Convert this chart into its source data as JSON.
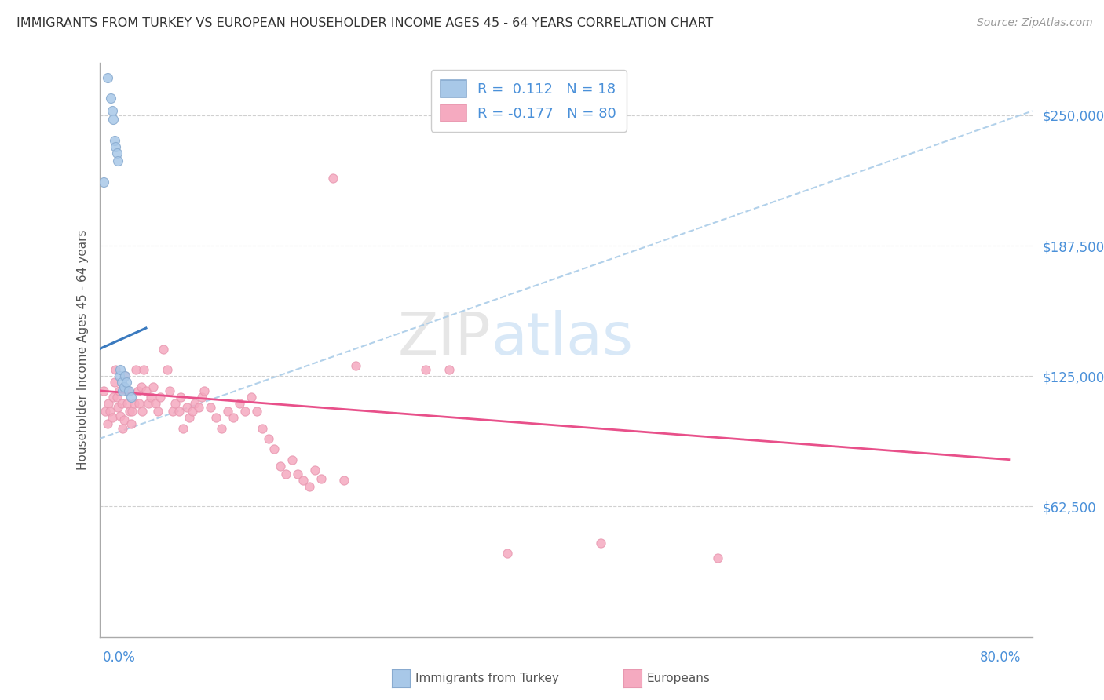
{
  "title": "IMMIGRANTS FROM TURKEY VS EUROPEAN HOUSEHOLDER INCOME AGES 45 - 64 YEARS CORRELATION CHART",
  "source": "Source: ZipAtlas.com",
  "ylabel": "Householder Income Ages 45 - 64 years",
  "y_ticks": [
    62500,
    125000,
    187500,
    250000
  ],
  "y_tick_labels": [
    "$62,500",
    "$125,000",
    "$187,500",
    "$250,000"
  ],
  "x_min": 0.0,
  "x_max": 0.8,
  "y_min": 0,
  "y_max": 275000,
  "color_turkey": "#a8c8e8",
  "color_europe": "#f5aac0",
  "trendline_turkey_dashed": "#aacce8",
  "trendline_turkey_solid": "#3a7abf",
  "trendline_europe_solid": "#e8508a",
  "turkey_points": [
    [
      0.004,
      218000
    ],
    [
      0.007,
      268000
    ],
    [
      0.01,
      258000
    ],
    [
      0.011,
      252000
    ],
    [
      0.012,
      248000
    ],
    [
      0.013,
      238000
    ],
    [
      0.014,
      235000
    ],
    [
      0.015,
      232000
    ],
    [
      0.016,
      228000
    ],
    [
      0.017,
      125000
    ],
    [
      0.018,
      128000
    ],
    [
      0.019,
      122000
    ],
    [
      0.02,
      118000
    ],
    [
      0.021,
      120000
    ],
    [
      0.022,
      125000
    ],
    [
      0.023,
      122000
    ],
    [
      0.025,
      118000
    ],
    [
      0.027,
      115000
    ]
  ],
  "europe_points": [
    [
      0.004,
      118000
    ],
    [
      0.005,
      108000
    ],
    [
      0.007,
      102000
    ],
    [
      0.008,
      112000
    ],
    [
      0.009,
      108000
    ],
    [
      0.011,
      105000
    ],
    [
      0.012,
      115000
    ],
    [
      0.013,
      122000
    ],
    [
      0.014,
      128000
    ],
    [
      0.015,
      115000
    ],
    [
      0.016,
      110000
    ],
    [
      0.017,
      118000
    ],
    [
      0.018,
      106000
    ],
    [
      0.019,
      112000
    ],
    [
      0.02,
      100000
    ],
    [
      0.021,
      104000
    ],
    [
      0.022,
      125000
    ],
    [
      0.023,
      118000
    ],
    [
      0.024,
      112000
    ],
    [
      0.025,
      118000
    ],
    [
      0.026,
      108000
    ],
    [
      0.027,
      102000
    ],
    [
      0.028,
      108000
    ],
    [
      0.03,
      112000
    ],
    [
      0.031,
      128000
    ],
    [
      0.033,
      118000
    ],
    [
      0.034,
      112000
    ],
    [
      0.036,
      120000
    ],
    [
      0.037,
      108000
    ],
    [
      0.038,
      128000
    ],
    [
      0.04,
      118000
    ],
    [
      0.042,
      112000
    ],
    [
      0.044,
      115000
    ],
    [
      0.046,
      120000
    ],
    [
      0.048,
      112000
    ],
    [
      0.05,
      108000
    ],
    [
      0.052,
      115000
    ],
    [
      0.055,
      138000
    ],
    [
      0.058,
      128000
    ],
    [
      0.06,
      118000
    ],
    [
      0.063,
      108000
    ],
    [
      0.065,
      112000
    ],
    [
      0.068,
      108000
    ],
    [
      0.07,
      115000
    ],
    [
      0.072,
      100000
    ],
    [
      0.075,
      110000
    ],
    [
      0.077,
      105000
    ],
    [
      0.08,
      108000
    ],
    [
      0.082,
      112000
    ],
    [
      0.085,
      110000
    ],
    [
      0.088,
      115000
    ],
    [
      0.09,
      118000
    ],
    [
      0.095,
      110000
    ],
    [
      0.1,
      105000
    ],
    [
      0.105,
      100000
    ],
    [
      0.11,
      108000
    ],
    [
      0.115,
      105000
    ],
    [
      0.12,
      112000
    ],
    [
      0.125,
      108000
    ],
    [
      0.13,
      115000
    ],
    [
      0.135,
      108000
    ],
    [
      0.14,
      100000
    ],
    [
      0.145,
      95000
    ],
    [
      0.15,
      90000
    ],
    [
      0.155,
      82000
    ],
    [
      0.16,
      78000
    ],
    [
      0.165,
      85000
    ],
    [
      0.17,
      78000
    ],
    [
      0.175,
      75000
    ],
    [
      0.18,
      72000
    ],
    [
      0.185,
      80000
    ],
    [
      0.19,
      76000
    ],
    [
      0.2,
      220000
    ],
    [
      0.21,
      75000
    ],
    [
      0.22,
      130000
    ],
    [
      0.28,
      128000
    ],
    [
      0.3,
      128000
    ],
    [
      0.35,
      40000
    ],
    [
      0.43,
      45000
    ],
    [
      0.53,
      38000
    ]
  ],
  "trendline_dashed_y0": 95000,
  "trendline_dashed_y1": 252000,
  "trendline_solid_turkey_x0": 0.0,
  "trendline_solid_turkey_x1": 0.04,
  "trendline_solid_turkey_y0": 138000,
  "trendline_solid_turkey_y1": 148000,
  "trendline_europe_x0": 0.0,
  "trendline_europe_x1": 0.78,
  "trendline_europe_y0": 118000,
  "trendline_europe_y1": 85000
}
